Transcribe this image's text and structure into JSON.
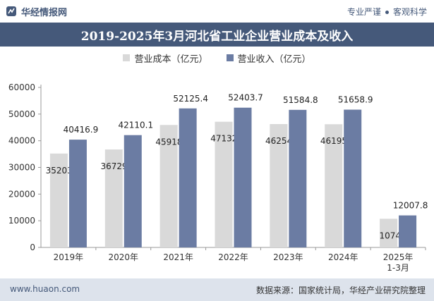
{
  "header": {
    "brand": "华经情报网",
    "slogan_1": "专业严谨",
    "slogan_2": "客观科学"
  },
  "footer": {
    "site": "www.huaon.com",
    "source": "数据来源：国家统计局，华经产业研究院整理"
  },
  "colors": {
    "header_bg": "#45597a",
    "cost": "#d9d9d9",
    "revenue": "#6b7ca3",
    "footer_bg": "#dde3ec"
  },
  "chart_data": {
    "type": "bar",
    "title": "2019-2025年3月河北省工业企业营业成本及收入",
    "categories": [
      "2019年",
      "2020年",
      "2021年",
      "2022年",
      "2023年",
      "2024年",
      "2025年1-3月"
    ],
    "series": [
      {
        "name": "营业成本（亿元）",
        "values": [
          35203.5,
          36729.4,
          45918.9,
          47132.4,
          46254.8,
          46195.6,
          10744
        ]
      },
      {
        "name": "营业收入（亿元）",
        "values": [
          40416.9,
          42110.1,
          52125.4,
          52403.7,
          51584.8,
          51658.9,
          12007.8
        ]
      }
    ],
    "value_labels": [
      [
        "35203.5",
        "36729.4",
        "45918.9",
        "47132.4",
        "46254.8",
        "46195.6",
        "10744"
      ],
      [
        "40416.9",
        "42110.1",
        "52125.4",
        "52403.7",
        "51584.8",
        "51658.9",
        "12007.8"
      ]
    ],
    "ylim": [
      0,
      60000
    ],
    "yticks": [
      0,
      10000,
      20000,
      30000,
      40000,
      50000,
      60000
    ],
    "xlabel": "",
    "ylabel": "",
    "legend": "top-center",
    "grid": false
  }
}
